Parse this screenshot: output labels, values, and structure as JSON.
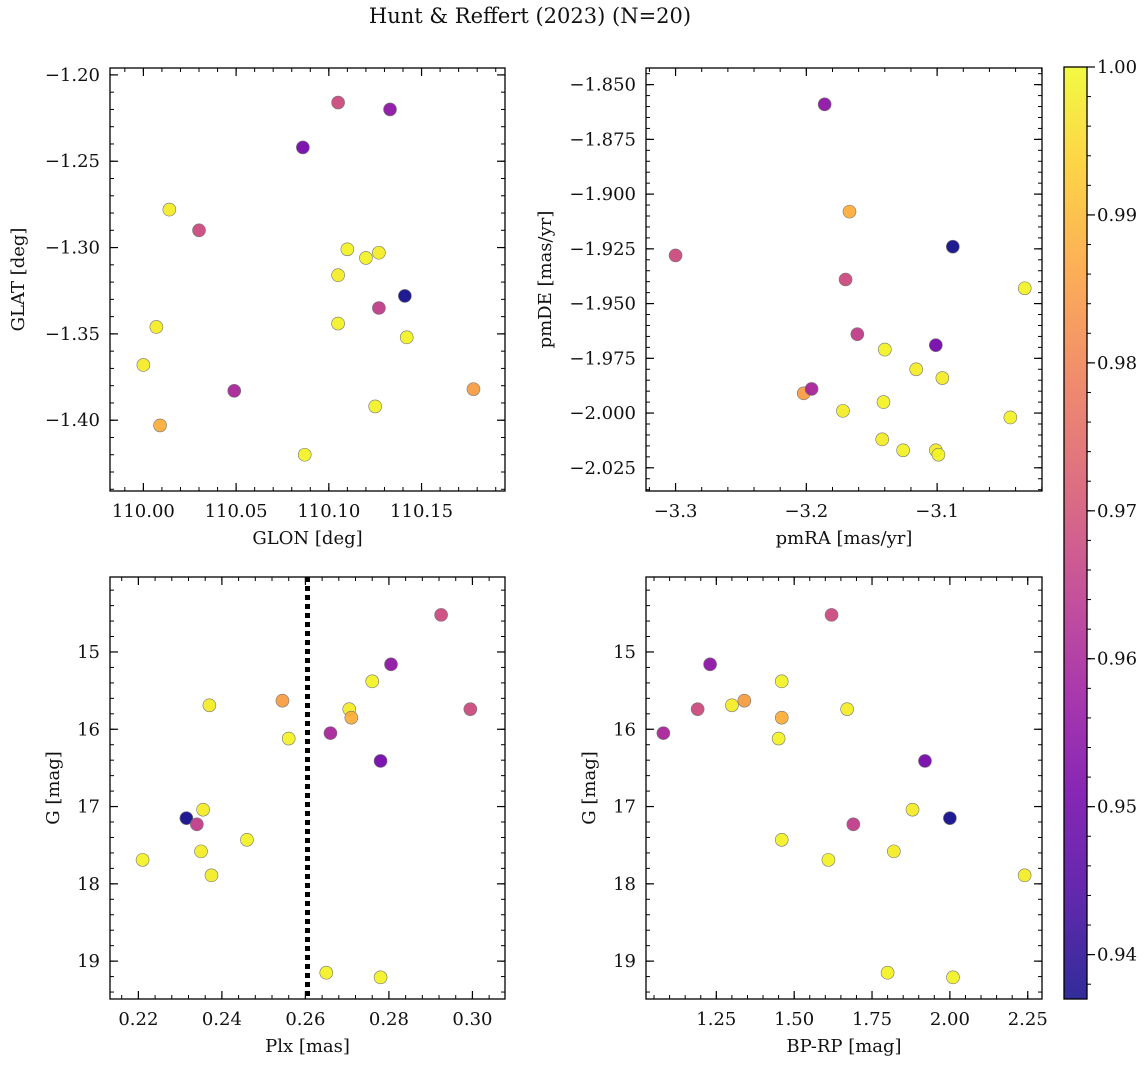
{
  "figure": {
    "title": "Hunt & Reffert (2023) (N=20)"
  },
  "colorbar": {
    "range": [
      0.937,
      1.0
    ],
    "ticks": [
      0.94,
      0.95,
      0.96,
      0.97,
      0.98,
      0.99,
      1.0
    ],
    "tick_labels": [
      "0.94",
      "0.95",
      "0.96",
      "0.97",
      "0.98",
      "0.99",
      "1.00"
    ],
    "colormap": "plasma",
    "stops": [
      "#0d0887",
      "#46039f",
      "#7201a8",
      "#9c179e",
      "#bd3786",
      "#d8576b",
      "#ed7953",
      "#fb9f3a",
      "#fdca26",
      "#f0f921"
    ]
  },
  "stars": [
    {
      "glon": 110.105,
      "glat": -1.216,
      "pmra": -3.17,
      "pmde": -1.939,
      "plx": 0.2995,
      "g": 15.74,
      "bprp": 1.19,
      "p": 0.968
    },
    {
      "glon": 110.133,
      "glat": -1.22,
      "pmra": -3.186,
      "pmde": -1.859,
      "plx": 0.2805,
      "g": 15.16,
      "bprp": 1.23,
      "p": 0.955
    },
    {
      "glon": 110.086,
      "glat": -1.242,
      "pmra": -3.101,
      "pmde": -1.969,
      "plx": 0.278,
      "g": 16.41,
      "bprp": 1.92,
      "p": 0.951
    },
    {
      "glon": 110.014,
      "glat": -1.278,
      "pmra": -3.172,
      "pmde": -1.999,
      "plx": 0.2355,
      "g": 17.04,
      "bprp": 1.88,
      "p": 0.998
    },
    {
      "glon": 110.03,
      "glat": -1.29,
      "pmra": -3.3,
      "pmde": -1.928,
      "plx": 0.2925,
      "g": 14.52,
      "bprp": 1.62,
      "p": 0.968
    },
    {
      "glon": 110.11,
      "glat": -1.301,
      "pmra": -3.14,
      "pmde": -1.971,
      "plx": 0.276,
      "g": 15.38,
      "bprp": 1.46,
      "p": 0.999
    },
    {
      "glon": 110.127,
      "glat": -1.303,
      "pmra": -3.116,
      "pmde": -1.98,
      "plx": 0.2705,
      "g": 15.74,
      "bprp": 1.67,
      "p": 0.998
    },
    {
      "glon": 110.12,
      "glat": -1.306,
      "pmra": -3.141,
      "pmde": -1.995,
      "plx": 0.256,
      "g": 16.12,
      "bprp": 1.45,
      "p": 0.999
    },
    {
      "glon": 110.105,
      "glat": -1.316,
      "pmra": -3.096,
      "pmde": -1.984,
      "plx": 0.237,
      "g": 15.69,
      "bprp": 1.3,
      "p": 0.998
    },
    {
      "glon": 110.141,
      "glat": -1.328,
      "pmra": -3.088,
      "pmde": -1.924,
      "plx": 0.2315,
      "g": 17.15,
      "bprp": 2.0,
      "p": 0.937
    },
    {
      "glon": 110.127,
      "glat": -1.335,
      "pmra": -3.161,
      "pmde": -1.964,
      "plx": 0.234,
      "g": 17.23,
      "bprp": 1.69,
      "p": 0.965
    },
    {
      "glon": 110.105,
      "glat": -1.344,
      "pmra": -3.033,
      "pmde": -1.943,
      "plx": 0.246,
      "g": 17.43,
      "bprp": 1.46,
      "p": 0.999
    },
    {
      "glon": 110.007,
      "glat": -1.346,
      "pmra": -3.142,
      "pmde": -2.012,
      "plx": 0.235,
      "g": 17.58,
      "bprp": 1.82,
      "p": 0.998
    },
    {
      "glon": 110.142,
      "glat": -1.352,
      "pmra": -3.126,
      "pmde": -2.017,
      "plx": 0.221,
      "g": 17.69,
      "bprp": 1.61,
      "p": 0.999
    },
    {
      "glon": 110.0,
      "glat": -1.368,
      "pmra": -3.101,
      "pmde": -2.017,
      "plx": 0.2375,
      "g": 17.89,
      "bprp": 2.24,
      "p": 0.998
    },
    {
      "glon": 110.178,
      "glat": -1.382,
      "pmra": -3.202,
      "pmde": -1.991,
      "plx": 0.2545,
      "g": 15.63,
      "bprp": 1.34,
      "p": 0.985
    },
    {
      "glon": 110.049,
      "glat": -1.383,
      "pmra": -3.196,
      "pmde": -1.989,
      "plx": 0.266,
      "g": 16.05,
      "bprp": 1.08,
      "p": 0.96
    },
    {
      "glon": 110.125,
      "glat": -1.392,
      "pmra": -3.044,
      "pmde": -2.002,
      "plx": 0.265,
      "g": 19.15,
      "bprp": 1.8,
      "p": 0.999
    },
    {
      "glon": 110.009,
      "glat": -1.403,
      "pmra": -3.167,
      "pmde": -1.908,
      "plx": 0.271,
      "g": 15.85,
      "bprp": 1.46,
      "p": 0.988
    },
    {
      "glon": 110.087,
      "glat": -1.42,
      "pmra": -3.099,
      "pmde": -2.019,
      "plx": 0.278,
      "g": 19.21,
      "bprp": 2.01,
      "p": 0.999
    }
  ],
  "chart_data": [
    {
      "type": "scatter",
      "panel": "top-left",
      "x_field": "glon",
      "y_field": "glat",
      "xlabel": "GLON [deg]",
      "ylabel": "GLAT [deg]",
      "xlim": [
        109.982,
        110.195
      ],
      "ylim": [
        -1.441,
        -1.196
      ],
      "invert_y": false,
      "xticks": [
        110.0,
        110.05,
        110.1,
        110.15
      ],
      "xtick_labels": [
        "110.00",
        "110.05",
        "110.10",
        "110.15"
      ],
      "yticks": [
        -1.2,
        -1.25,
        -1.3,
        -1.35,
        -1.4
      ],
      "ytick_labels": [
        "−1.20",
        "−1.25",
        "−1.30",
        "−1.35",
        "−1.40"
      ]
    },
    {
      "type": "scatter",
      "panel": "top-right",
      "x_field": "pmra",
      "y_field": "pmde",
      "xlabel": "pmRA [mas/yr]",
      "ylabel": "pmDE [mas/yr]",
      "xlim": [
        -3.3226,
        -3.0198
      ],
      "ylim": [
        -2.0356,
        -1.8424
      ],
      "invert_y": false,
      "xticks": [
        -3.3,
        -3.2,
        -3.1
      ],
      "xtick_labels": [
        "−3.3",
        "−3.2",
        "−3.1"
      ],
      "yticks": [
        -1.85,
        -1.875,
        -1.9,
        -1.925,
        -1.95,
        -1.975,
        -2.0,
        -2.025
      ],
      "ytick_labels": [
        "−1.850",
        "−1.875",
        "−1.900",
        "−1.925",
        "−1.950",
        "−1.975",
        "−2.000",
        "−2.025"
      ]
    },
    {
      "type": "scatter",
      "panel": "bottom-left",
      "x_field": "plx",
      "y_field": "g",
      "xlabel": "Plx [mas]",
      "ylabel": "G [mag]",
      "xlim": [
        0.2132,
        0.3078
      ],
      "ylim": [
        14.03,
        19.49
      ],
      "invert_y": true,
      "vline": {
        "x": 0.2605,
        "style": "dotted"
      },
      "xticks": [
        0.22,
        0.24,
        0.26,
        0.28,
        0.3
      ],
      "xtick_labels": [
        "0.22",
        "0.24",
        "0.26",
        "0.28",
        "0.30"
      ],
      "yticks": [
        15,
        16,
        17,
        18,
        19
      ],
      "ytick_labels": [
        "15",
        "16",
        "17",
        "18",
        "19"
      ]
    },
    {
      "type": "scatter",
      "panel": "bottom-right",
      "x_field": "bprp",
      "y_field": "g",
      "xlabel": "BP-RP [mag]",
      "ylabel": "G [mag]",
      "xlim": [
        1.0242,
        2.2958
      ],
      "ylim": [
        14.03,
        19.49
      ],
      "invert_y": true,
      "xticks": [
        1.25,
        1.5,
        1.75,
        2.0,
        2.25
      ],
      "xtick_labels": [
        "1.25",
        "1.50",
        "1.75",
        "2.00",
        "2.25"
      ],
      "yticks": [
        15,
        16,
        17,
        18,
        19
      ],
      "ytick_labels": [
        "15",
        "16",
        "17",
        "18",
        "19"
      ]
    }
  ]
}
